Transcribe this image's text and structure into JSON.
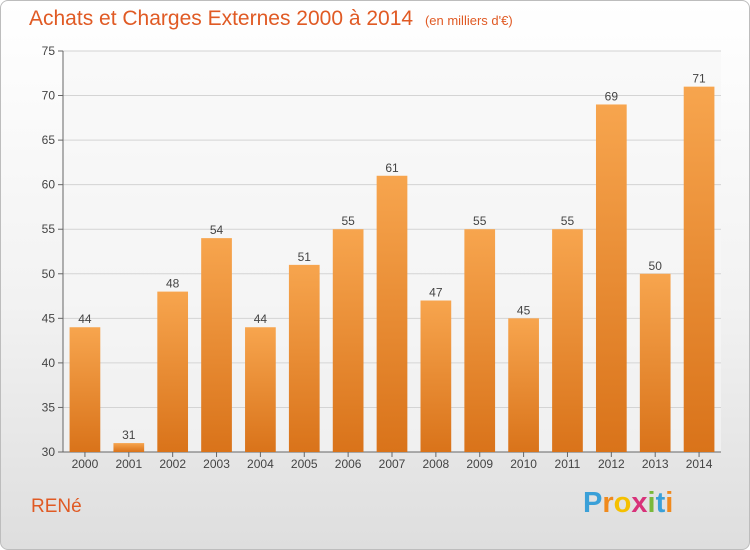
{
  "header": {
    "title": "Achats et Charges Externes 2000 à 2014",
    "unit": "(en milliers d'€)"
  },
  "footer": {
    "commune": "RENé",
    "logo_letters": [
      "P",
      "r",
      "o",
      "x",
      "i",
      "t",
      "i"
    ],
    "logo_colors": [
      "#3aa0d8",
      "#f08a1d",
      "#f5c000",
      "#d8327a",
      "#7ab83a",
      "#3aa0d8",
      "#f08a1d"
    ]
  },
  "chart_data": {
    "type": "bar",
    "title": "Achats et Charges Externes 2000 à 2014",
    "subtitle": "(en milliers d'€)",
    "categories": [
      "2000",
      "2001",
      "2002",
      "2003",
      "2004",
      "2005",
      "2006",
      "2007",
      "2008",
      "2009",
      "2010",
      "2011",
      "2012",
      "2013",
      "2014"
    ],
    "values": [
      44,
      31,
      48,
      54,
      44,
      51,
      55,
      61,
      47,
      55,
      45,
      55,
      69,
      50,
      71
    ],
    "ylim": [
      30,
      75
    ],
    "yticks": [
      30,
      35,
      40,
      45,
      50,
      55,
      60,
      65,
      70,
      75
    ],
    "grid": true,
    "bar_color_top": "#f7a54e",
    "bar_color_bottom": "#d9731a"
  }
}
